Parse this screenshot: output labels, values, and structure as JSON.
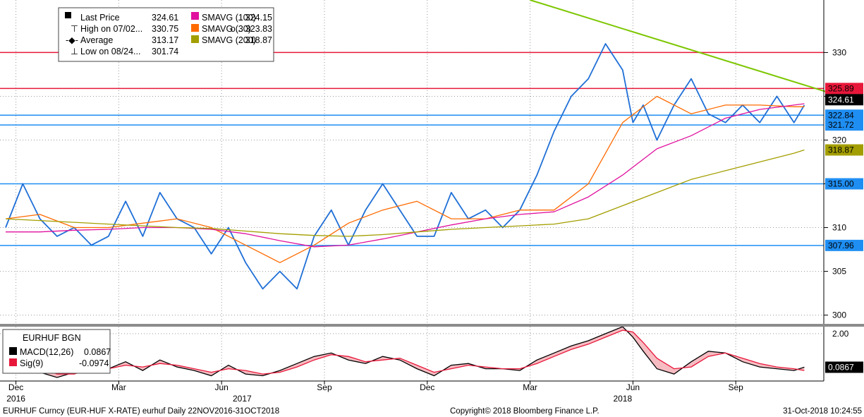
{
  "chart_data": {
    "type": "line",
    "instrument": "EURHUF BGN",
    "footer": {
      "left": "EURHUF Curncy (EUR-HUF X-RATE) eurhuf  Daily 22NOV2016-31OCT2018",
      "center": "Copyright© 2018 Bloomberg Finance L.P.",
      "right": "31-Oct-2018 10:24:55"
    },
    "x_ticks": [
      {
        "label": "Dec",
        "month_index": 0.3
      },
      {
        "label": "Mar",
        "month_index": 3.3
      },
      {
        "label": "Jun",
        "month_index": 6.3
      },
      {
        "label": "Sep",
        "month_index": 9.3
      },
      {
        "label": "Dec",
        "month_index": 12.3
      },
      {
        "label": "Mar",
        "month_index": 15.3
      },
      {
        "label": "Jun",
        "month_index": 18.3
      },
      {
        "label": "Sep",
        "month_index": 21.3
      }
    ],
    "year_labels": [
      {
        "label": "2016",
        "month_index": 0.3
      },
      {
        "label": "2017",
        "month_index": 6.9
      },
      {
        "label": "2018",
        "month_index": 18.0
      }
    ],
    "price_panel": {
      "ylim": [
        299,
        336
      ],
      "y_ticks": [
        300,
        305,
        310,
        315,
        320,
        325,
        330
      ],
      "legend": [
        {
          "label": "Last Price",
          "value": "324.61",
          "color": "#000000"
        },
        {
          "label": "High on 07/02...",
          "value": "330.75"
        },
        {
          "label": "Average",
          "value": "313.17"
        },
        {
          "label": "Low on 08/24...",
          "value": "301.74"
        }
      ],
      "sma_legend": [
        {
          "label": "SMAVG (100)",
          "value": "... 324.15",
          "color": "#e0119e"
        },
        {
          "label": "SMAVG (30)",
          "value": "o... 323.83",
          "color": "#ff6a00"
        },
        {
          "label": "SMAVG (200)",
          "value": "... 318.87",
          "color": "#a39e00"
        }
      ],
      "series": [
        {
          "name": "Last Price",
          "color": "#1f6fd6",
          "x": [
            0,
            0.5,
            1,
            1.5,
            2,
            2.5,
            3,
            3.5,
            4,
            4.5,
            5,
            5.5,
            6,
            6.5,
            7,
            7.5,
            8,
            8.5,
            9,
            9.5,
            10,
            10.5,
            11,
            11.5,
            12,
            12.5,
            13,
            13.5,
            14,
            14.5,
            15,
            15.5,
            16,
            16.5,
            17,
            17.5,
            18,
            18.3,
            18.6,
            19,
            19.5,
            20,
            20.5,
            21,
            21.5,
            22,
            22.5,
            23,
            23.3
          ],
          "y": [
            310,
            315,
            311,
            309,
            310,
            308,
            309,
            313,
            309,
            314,
            311,
            310,
            307,
            310,
            306,
            303,
            305,
            303,
            309,
            312,
            308,
            312,
            315,
            312,
            309,
            309,
            314,
            311,
            312,
            310,
            312,
            316,
            321,
            325,
            327,
            331,
            328,
            322,
            324,
            320,
            324,
            327,
            323,
            322,
            324,
            322,
            325,
            322,
            324
          ]
        },
        {
          "name": "SMAVG (30)",
          "color": "#ff6a00",
          "x": [
            0,
            1,
            2,
            3,
            4,
            5,
            6,
            7,
            8,
            9,
            10,
            11,
            12,
            13,
            14,
            15,
            16,
            17,
            18,
            19,
            20,
            21,
            22,
            23,
            23.3
          ],
          "y": [
            311,
            311.5,
            310,
            310,
            310.5,
            311,
            310,
            308,
            306,
            308,
            310.5,
            312,
            313,
            311,
            311,
            312,
            312,
            315,
            322,
            325,
            323,
            324,
            324,
            323.8,
            323.8
          ]
        },
        {
          "name": "SMAVG (100)",
          "color": "#e0119e",
          "x": [
            0,
            1,
            2,
            3,
            4,
            5,
            6,
            7,
            8,
            9,
            10,
            11,
            12,
            13,
            14,
            15,
            16,
            17,
            18,
            19,
            20,
            21,
            22,
            23,
            23.3
          ],
          "y": [
            309.5,
            309.5,
            309.7,
            309.8,
            310,
            310,
            309.8,
            309.3,
            308.5,
            307.8,
            308,
            308.7,
            309.5,
            310.3,
            311,
            311.5,
            311.8,
            313.5,
            316,
            319,
            320.5,
            322.5,
            323.5,
            324,
            324.15
          ]
        },
        {
          "name": "SMAVG (200)",
          "color": "#a39e00",
          "x": [
            0,
            1,
            2,
            3,
            4,
            5,
            6,
            7,
            8,
            9,
            10,
            11,
            12,
            13,
            14,
            15,
            16,
            17,
            18,
            19,
            20,
            21,
            22,
            23,
            23.3
          ],
          "y": [
            311,
            310.8,
            310.6,
            310.4,
            310.2,
            310,
            309.9,
            309.6,
            309.3,
            309.1,
            309,
            309.2,
            309.5,
            309.8,
            310,
            310.2,
            310.4,
            311,
            312.5,
            314,
            315.5,
            316.5,
            317.5,
            318.5,
            318.87
          ]
        }
      ],
      "horizontal_lines": [
        {
          "value": 330.0,
          "color": "#e8173a",
          "tag": ""
        },
        {
          "value": 325.89,
          "color": "#e8173a",
          "tag": "325.89"
        },
        {
          "value": 322.84,
          "color": "#1f8ef2",
          "tag": "322.84"
        },
        {
          "value": 321.72,
          "color": "#1f8ef2",
          "tag": "321.72"
        },
        {
          "value": 315.0,
          "color": "#1f8ef2",
          "tag": "315.00"
        },
        {
          "value": 307.96,
          "color": "#1f8ef2",
          "tag": "307.96"
        }
      ],
      "trendline": {
        "color": "#7cc600",
        "from": {
          "month_index": 15.3,
          "value": 336
        },
        "to": {
          "month_index": 24.2,
          "value": 325.2
        }
      },
      "price_tags": [
        {
          "value": 324.61,
          "label": "324.61",
          "bg": "#000000",
          "fg": "#ffffff"
        },
        {
          "value": 318.87,
          "label": "318.87",
          "bg": "#a39e00",
          "fg": "#000000"
        }
      ]
    },
    "macd_panel": {
      "title": "EURHUF BGN",
      "ylim": [
        -0.7,
        2.4
      ],
      "y_ticks": [
        {
          "value": 2.0,
          "label": "2.00"
        }
      ],
      "legend": [
        {
          "label": "MACD(12,26)",
          "value": "0.0867",
          "color": "#000000"
        },
        {
          "label": "Sig(9)",
          "value": "-0.0974",
          "color": "#e8173a"
        }
      ],
      "series": [
        {
          "name": "MACD(12,26)",
          "color": "#000000",
          "x": [
            0,
            0.5,
            1,
            1.5,
            2,
            2.5,
            3,
            3.5,
            4,
            4.5,
            5,
            5.5,
            6,
            6.5,
            7,
            7.5,
            8,
            8.5,
            9,
            9.5,
            10,
            10.5,
            11,
            11.5,
            12,
            12.5,
            13,
            13.5,
            14,
            14.5,
            15,
            15.5,
            16,
            16.5,
            17,
            17.5,
            18,
            18.3,
            18.6,
            19,
            19.5,
            20,
            20.5,
            21,
            21.5,
            22,
            22.5,
            23,
            23.3
          ],
          "y": [
            0.6,
            0.3,
            -0.2,
            -0.5,
            -0.2,
            0.1,
            0.0,
            0.4,
            -0.1,
            0.5,
            0.1,
            -0.1,
            -0.4,
            0.2,
            -0.3,
            -0.4,
            -0.1,
            0.3,
            0.7,
            0.9,
            0.5,
            0.3,
            0.7,
            0.5,
            0.0,
            -0.4,
            0.2,
            0.3,
            0.0,
            0.0,
            -0.1,
            0.5,
            0.9,
            1.3,
            1.6,
            2.0,
            2.4,
            1.8,
            1.0,
            0.0,
            -0.3,
            0.4,
            1.0,
            0.9,
            0.4,
            0.1,
            0.0,
            -0.1,
            0.09
          ]
        },
        {
          "name": "Sig(9)",
          "color": "#e8173a",
          "x": [
            0,
            0.5,
            1,
            1.5,
            2,
            2.5,
            3,
            3.5,
            4,
            4.5,
            5,
            5.5,
            6,
            6.5,
            7,
            7.5,
            8,
            8.5,
            9,
            9.5,
            10,
            10.5,
            11,
            11.5,
            12,
            12.5,
            13,
            13.5,
            14,
            14.5,
            15,
            15.5,
            16,
            16.5,
            17,
            17.5,
            18,
            18.3,
            18.6,
            19,
            19.5,
            20,
            20.5,
            21,
            21.5,
            22,
            22.5,
            23,
            23.3
          ],
          "y": [
            0.7,
            0.5,
            0.1,
            -0.3,
            -0.3,
            0.0,
            0.0,
            0.2,
            0.1,
            0.3,
            0.2,
            0.0,
            -0.2,
            0.0,
            -0.1,
            -0.3,
            -0.2,
            0.1,
            0.5,
            0.8,
            0.7,
            0.4,
            0.5,
            0.6,
            0.2,
            -0.2,
            0.0,
            0.2,
            0.1,
            0.0,
            0.0,
            0.3,
            0.7,
            1.1,
            1.4,
            1.8,
            2.2,
            2.1,
            1.5,
            0.6,
            0.0,
            0.1,
            0.7,
            0.9,
            0.6,
            0.3,
            0.1,
            0.0,
            -0.1
          ]
        }
      ],
      "tag": {
        "value": 0.0867,
        "label": "0.0867"
      }
    }
  }
}
